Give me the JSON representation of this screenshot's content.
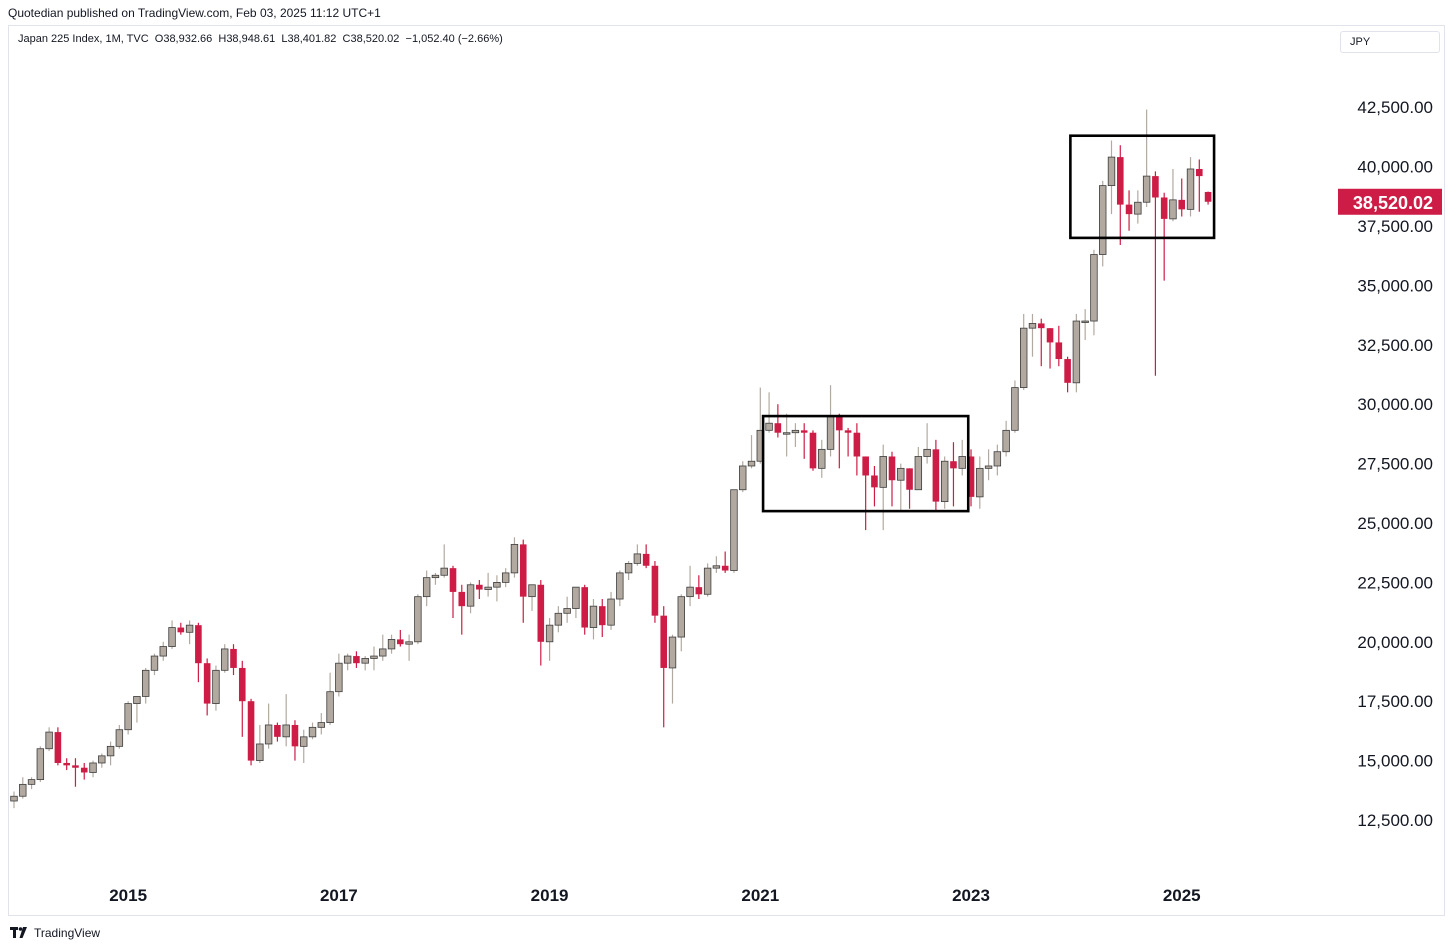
{
  "header": {
    "published": "Quotedian published on TradingView.com, Feb 03, 2025 11:12 UTC+1",
    "symbol_line": "Japan 225 Index, 1M, TVC  O38,932.66  H38,948.61  L38,401.82  C38,520.02  −1,052.40 (−2.66%)",
    "currency": "JPY"
  },
  "footer": {
    "brand": "TradingView",
    "logo": "tradingview-logo-icon"
  },
  "colors": {
    "up": "#b2aaa0",
    "down": "#cd1c45",
    "box": "#000000",
    "text": "#131722",
    "grid_border": "#e0e3eb"
  },
  "chart_data": {
    "type": "candlestick",
    "interval": "1M",
    "x_labels": [
      "2015",
      "2017",
      "2019",
      "2021",
      "2023",
      "2025"
    ],
    "y_ticks": [
      "12,500.00",
      "15,000.00",
      "17,500.00",
      "20,000.00",
      "22,500.00",
      "25,000.00",
      "27,500.00",
      "30,000.00",
      "32,500.00",
      "35,000.00",
      "37,500.00",
      "40,000.00",
      "42,500.00"
    ],
    "ylim": [
      10000,
      44500
    ],
    "last_price_label": "38,520.02",
    "last_price": 38520.02,
    "start_month": "2013-12",
    "candles": [
      [
        13300,
        13700,
        13000,
        13500
      ],
      [
        13500,
        14300,
        13400,
        14000
      ],
      [
        14000,
        14300,
        13800,
        14200
      ],
      [
        14200,
        15600,
        14100,
        15500
      ],
      [
        15500,
        16400,
        15400,
        16200
      ],
      [
        16200,
        16400,
        14800,
        14900
      ],
      [
        14900,
        15100,
        14600,
        14800
      ],
      [
        14800,
        15100,
        13900,
        14700
      ],
      [
        14700,
        14900,
        14200,
        14500
      ],
      [
        14500,
        15000,
        14300,
        14900
      ],
      [
        14900,
        15300,
        14700,
        15200
      ],
      [
        15200,
        15800,
        14800,
        15600
      ],
      [
        15600,
        16500,
        15500,
        16300
      ],
      [
        16300,
        17500,
        16100,
        17400
      ],
      [
        17400,
        17600,
        16600,
        17700
      ],
      [
        17700,
        18900,
        17400,
        18800
      ],
      [
        18800,
        19500,
        18600,
        19400
      ],
      [
        19400,
        20000,
        19200,
        19800
      ],
      [
        19800,
        20900,
        19700,
        20600
      ],
      [
        20600,
        20800,
        20300,
        20400
      ],
      [
        20400,
        20900,
        19900,
        20700
      ],
      [
        20700,
        20800,
        18300,
        19100
      ],
      [
        19100,
        19300,
        16900,
        17400
      ],
      [
        17400,
        19000,
        17100,
        18800
      ],
      [
        18800,
        19900,
        18700,
        19700
      ],
      [
        19700,
        19900,
        18600,
        18900
      ],
      [
        18900,
        19200,
        16000,
        17500
      ],
      [
        17500,
        17600,
        14800,
        15000
      ],
      [
        15000,
        16500,
        14900,
        15700
      ],
      [
        15700,
        17400,
        15500,
        16500
      ],
      [
        16500,
        16600,
        15800,
        16000
      ],
      [
        16000,
        17800,
        15600,
        16500
      ],
      [
        16500,
        16700,
        15000,
        15600
      ],
      [
        15600,
        16300,
        14900,
        16000
      ],
      [
        16000,
        16600,
        15900,
        16400
      ],
      [
        16400,
        17000,
        16100,
        16600
      ],
      [
        16600,
        18700,
        16500,
        17900
      ],
      [
        17900,
        19500,
        17700,
        19100
      ],
      [
        19100,
        19500,
        18800,
        19400
      ],
      [
        19400,
        19600,
        18900,
        19100
      ],
      [
        19100,
        19400,
        18800,
        19300
      ],
      [
        19300,
        19800,
        18800,
        19400
      ],
      [
        19400,
        20300,
        19200,
        19700
      ],
      [
        19700,
        20300,
        19500,
        20100
      ],
      [
        20100,
        20500,
        19800,
        19900
      ],
      [
        19900,
        20300,
        19200,
        20000
      ],
      [
        20000,
        22000,
        19900,
        21900
      ],
      [
        21900,
        23000,
        21500,
        22700
      ],
      [
        22700,
        22900,
        22400,
        22800
      ],
      [
        22800,
        24100,
        22700,
        23100
      ],
      [
        23100,
        23200,
        21000,
        22100
      ],
      [
        22100,
        22400,
        20300,
        21500
      ],
      [
        21500,
        22500,
        21200,
        22400
      ],
      [
        22400,
        22600,
        21800,
        22200
      ],
      [
        22200,
        22900,
        21900,
        22300
      ],
      [
        22300,
        22800,
        21700,
        22500
      ],
      [
        22500,
        23100,
        22300,
        22900
      ],
      [
        22900,
        24400,
        22700,
        24100
      ],
      [
        24100,
        24300,
        20800,
        21900
      ],
      [
        21900,
        22300,
        21300,
        22400
      ],
      [
        22400,
        22600,
        19000,
        20000
      ],
      [
        20000,
        21000,
        19200,
        20700
      ],
      [
        20700,
        21500,
        20400,
        21200
      ],
      [
        21200,
        21900,
        20800,
        21400
      ],
      [
        21400,
        22300,
        21000,
        22300
      ],
      [
        22300,
        22400,
        20300,
        20600
      ],
      [
        20600,
        21800,
        20100,
        21500
      ],
      [
        21500,
        21800,
        20200,
        20700
      ],
      [
        20700,
        22100,
        20500,
        21800
      ],
      [
        21800,
        23000,
        21500,
        22900
      ],
      [
        22900,
        23400,
        22600,
        23300
      ],
      [
        23300,
        24100,
        23200,
        23700
      ],
      [
        23700,
        24100,
        23100,
        23200
      ],
      [
        23200,
        23400,
        20800,
        21100
      ],
      [
        21100,
        21500,
        16400,
        18900
      ],
      [
        18900,
        20300,
        17400,
        20200
      ],
      [
        20200,
        22000,
        19600,
        21900
      ],
      [
        21900,
        23200,
        21500,
        22300
      ],
      [
        22300,
        22800,
        21800,
        22000
      ],
      [
        22000,
        23300,
        21900,
        23100
      ],
      [
        23100,
        23600,
        22900,
        23200
      ],
      [
        23200,
        23800,
        22900,
        23000
      ],
      [
        23000,
        26400,
        22900,
        26400
      ],
      [
        26400,
        27600,
        26300,
        27400
      ],
      [
        27400,
        28700,
        27300,
        27600
      ],
      [
        27600,
        30700,
        27500,
        28900
      ],
      [
        28900,
        30500,
        28800,
        29200
      ],
      [
        29200,
        30000,
        28600,
        28800
      ],
      [
        28800,
        29600,
        27800,
        28800
      ],
      [
        28800,
        29200,
        28200,
        28900
      ],
      [
        28900,
        29200,
        27700,
        28800
      ],
      [
        28800,
        28900,
        27200,
        27300
      ],
      [
        27300,
        28500,
        26900,
        28100
      ],
      [
        28100,
        30800,
        27800,
        29500
      ],
      [
        29500,
        29600,
        27300,
        28900
      ],
      [
        28900,
        29000,
        27800,
        28800
      ],
      [
        28800,
        29200,
        27000,
        27800
      ],
      [
        27800,
        27800,
        24700,
        27000
      ],
      [
        27000,
        27400,
        25700,
        26500
      ],
      [
        26500,
        28300,
        24700,
        27800
      ],
      [
        27800,
        28000,
        25700,
        26800
      ],
      [
        26800,
        27500,
        25500,
        27300
      ],
      [
        27300,
        27300,
        25600,
        26400
      ],
      [
        26400,
        28200,
        26400,
        27800
      ],
      [
        27800,
        29200,
        27500,
        28100
      ],
      [
        28100,
        28500,
        25500,
        25900
      ],
      [
        25900,
        27800,
        25600,
        27600
      ],
      [
        27600,
        28400,
        25700,
        27300
      ],
      [
        27300,
        28500,
        27000,
        27800
      ],
      [
        27800,
        28100,
        25700,
        26100
      ],
      [
        26100,
        27800,
        25600,
        27300
      ],
      [
        27300,
        28100,
        26800,
        27400
      ],
      [
        27400,
        28300,
        27000,
        28000
      ],
      [
        28000,
        29300,
        27800,
        28900
      ],
      [
        28900,
        31000,
        28800,
        30700
      ],
      [
        30700,
        33800,
        30600,
        33200
      ],
      [
        33200,
        33800,
        32000,
        33400
      ],
      [
        33400,
        33600,
        31600,
        33200
      ],
      [
        33200,
        33200,
        31500,
        32600
      ],
      [
        32600,
        33300,
        31600,
        31900
      ],
      [
        31900,
        32000,
        30500,
        30900
      ],
      [
        30900,
        33800,
        30500,
        33500
      ],
      [
        33500,
        34000,
        32700,
        33500
      ],
      [
        33500,
        36500,
        32900,
        36300
      ],
      [
        36300,
        39400,
        35800,
        39200
      ],
      [
        39200,
        41100,
        38000,
        40400
      ],
      [
        40400,
        40900,
        36700,
        38400
      ],
      [
        38400,
        39000,
        37300,
        38000
      ],
      [
        38000,
        39000,
        37600,
        38500
      ],
      [
        38500,
        42400,
        38300,
        39600
      ],
      [
        39600,
        39800,
        31200,
        38700
      ],
      [
        38700,
        38900,
        35200,
        37800
      ],
      [
        37800,
        39900,
        37700,
        38600
      ],
      [
        38600,
        39500,
        37900,
        38200
      ],
      [
        38200,
        40400,
        37900,
        39900
      ],
      [
        39900,
        40300,
        38100,
        39600
      ],
      [
        38932.66,
        38948.61,
        38401.82,
        38520.02
      ]
    ],
    "boxes": [
      {
        "x_from": "2021-02",
        "x_to": "2022-12",
        "y_from": 25500,
        "y_to": 29500
      },
      {
        "x_from": "2024-01",
        "x_to": "2025-04",
        "y_from": 37000,
        "y_to": 41300
      }
    ]
  }
}
